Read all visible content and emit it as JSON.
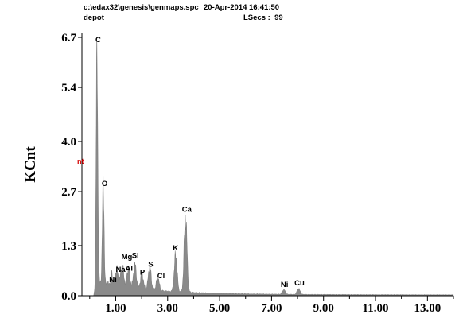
{
  "header": {
    "path": "c:\\edax32\\genesis\\genmaps.spc",
    "datetime": "20-Apr-2014 16:41:50",
    "name": "depot",
    "lsecs": "LSecs :  99"
  },
  "stray_mark": "nt",
  "colors": {
    "spectrum": "#8a8a8a",
    "axis": "#000000",
    "text": "#000000",
    "mark": "#d40000"
  },
  "chart_data": {
    "type": "area",
    "title": "",
    "xlabel": "",
    "ylabel": "KCnt",
    "xlim": [
      -0.3,
      14.0
    ],
    "ylim": [
      0,
      6.7
    ],
    "x_ticks": [
      1.0,
      3.0,
      5.0,
      7.0,
      9.0,
      11.0,
      13.0
    ],
    "x_tick_labels": [
      "1.00",
      "3.00",
      "5.00",
      "7.00",
      "9.00",
      "11.00",
      "13.00"
    ],
    "y_ticks": [
      0,
      1.3,
      2.7,
      4.0,
      5.4,
      6.7
    ],
    "y_tick_labels": [
      "0.0",
      "1.3",
      "2.7",
      "4.0",
      "5.4",
      "6.7"
    ],
    "grid": false,
    "peaks": [
      {
        "label": "C",
        "x": 0.28,
        "y": 6.6
      },
      {
        "label": "O",
        "x": 0.52,
        "y": 2.85
      },
      {
        "label": "Ni",
        "x": 0.85,
        "y": 0.3
      },
      {
        "label": "Na",
        "x": 1.04,
        "y": 0.4
      },
      {
        "label": "Mg",
        "x": 1.25,
        "y": 0.55
      },
      {
        "label": "Al",
        "x": 1.49,
        "y": 0.5
      },
      {
        "label": "Si",
        "x": 1.74,
        "y": 0.6
      },
      {
        "label": "P",
        "x": 2.01,
        "y": 0.4
      },
      {
        "label": "S",
        "x": 2.31,
        "y": 0.6
      },
      {
        "label": "Cl",
        "x": 2.62,
        "y": 0.35
      },
      {
        "label": "K",
        "x": 3.31,
        "y": 0.95
      },
      {
        "label": "Ca",
        "x": 3.69,
        "y": 2.0
      },
      {
        "label": "Ni",
        "x": 7.47,
        "y": 0.12
      },
      {
        "label": "Cu",
        "x": 8.04,
        "y": 0.15
      }
    ],
    "peak_labels": [
      {
        "text": "C",
        "x": 0.22,
        "y": 6.58
      },
      {
        "text": "O",
        "x": 0.46,
        "y": 2.85
      },
      {
        "text": "Ni",
        "x": 0.75,
        "y": 0.35
      },
      {
        "text": "Na",
        "x": 1.0,
        "y": 0.62
      },
      {
        "text": "Al",
        "x": 1.37,
        "y": 0.65
      },
      {
        "text": "Mg",
        "x": 1.22,
        "y": 0.95
      },
      {
        "text": "Si",
        "x": 1.62,
        "y": 0.98
      },
      {
        "text": "P",
        "x": 1.93,
        "y": 0.55
      },
      {
        "text": "S",
        "x": 2.25,
        "y": 0.75
      },
      {
        "text": "Cl",
        "x": 2.6,
        "y": 0.45
      },
      {
        "text": "K",
        "x": 3.2,
        "y": 1.18
      },
      {
        "text": "Ca",
        "x": 3.55,
        "y": 2.17
      },
      {
        "text": "Ni",
        "x": 7.35,
        "y": 0.23
      },
      {
        "text": "Cu",
        "x": 7.88,
        "y": 0.27
      }
    ]
  }
}
